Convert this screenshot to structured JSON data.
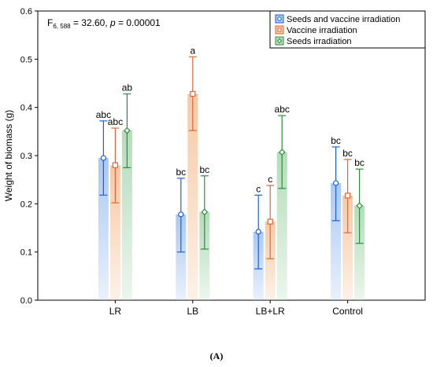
{
  "caption": "(A)",
  "chart_data": {
    "type": "bar",
    "ylabel": "Weight of biomass (g)",
    "xlabel": "",
    "ylim": [
      0,
      0.6
    ],
    "yticks": [
      "0.0",
      "0.1",
      "0.2",
      "0.3",
      "0.4",
      "0.5",
      "0.6"
    ],
    "annotation": {
      "stat_main": "F",
      "stat_sub": "6, 588",
      "stat_value": " = 32.60, ",
      "p_label": "p",
      "p_value": " = 0.00001"
    },
    "categories": [
      "LR",
      "LB",
      "LB+LR",
      "Control"
    ],
    "legend_position": "top-right",
    "series": [
      {
        "name": "Seeds and vaccine irradiation",
        "color": "#1f5fd6",
        "fill": "#a9c8f2",
        "marker": "circle",
        "values": [
          0.295,
          0.178,
          0.142,
          0.243
        ],
        "error_low": [
          0.218,
          0.1,
          0.065,
          0.165
        ],
        "error_high": [
          0.372,
          0.253,
          0.218,
          0.318
        ],
        "labels": [
          "abc",
          "bc",
          "c",
          "bc"
        ]
      },
      {
        "name": "Vaccine irradiation",
        "color": "#e0653a",
        "fill": "#f6c9a4",
        "marker": "square",
        "values": [
          0.28,
          0.428,
          0.163,
          0.217
        ],
        "error_low": [
          0.202,
          0.352,
          0.086,
          0.14
        ],
        "error_high": [
          0.357,
          0.505,
          0.238,
          0.292
        ],
        "labels": [
          "abc",
          "a",
          "c",
          "bc"
        ]
      },
      {
        "name": "Seeds irradiation",
        "color": "#2e8b3a",
        "fill": "#b3dcb8",
        "marker": "diamond",
        "values": [
          0.352,
          0.183,
          0.307,
          0.196
        ],
        "error_low": [
          0.275,
          0.106,
          0.232,
          0.118
        ],
        "error_high": [
          0.428,
          0.258,
          0.383,
          0.272
        ],
        "labels": [
          "ab",
          "bc",
          "abc",
          "bc"
        ]
      }
    ]
  }
}
